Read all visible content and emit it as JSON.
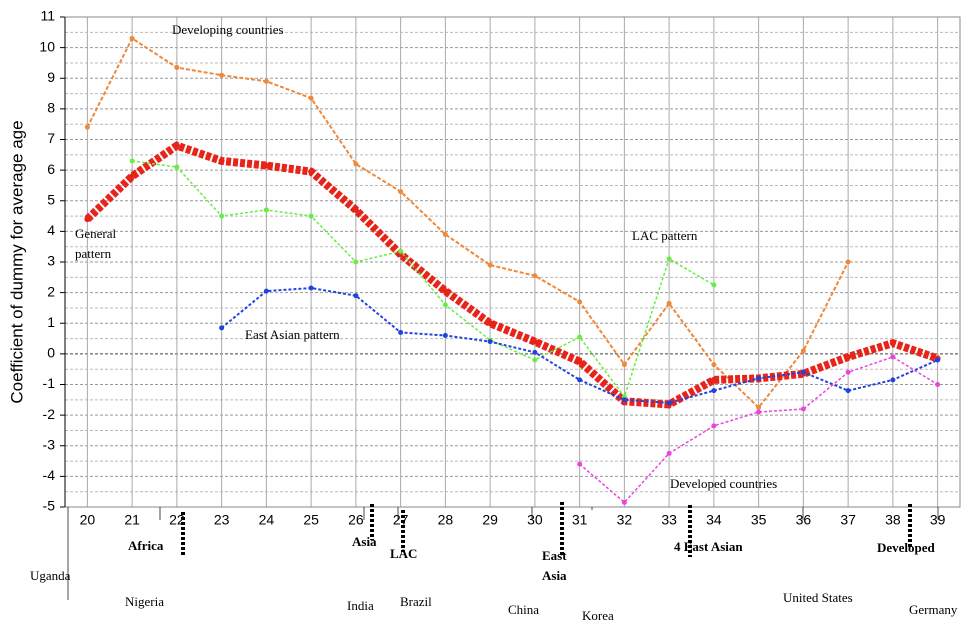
{
  "chart_data": {
    "type": "line",
    "y_label": "Coefficient of dummy for average age",
    "xlim": [
      19.5,
      39.5
    ],
    "xticks": [
      20,
      21,
      22,
      23,
      24,
      25,
      26,
      27,
      28,
      29,
      30,
      31,
      32,
      33,
      34,
      35,
      36,
      37,
      38,
      39
    ],
    "ylim": [
      -5,
      11
    ],
    "yticks": [
      -5,
      -4,
      -3,
      -2,
      -1,
      0,
      1,
      2,
      3,
      4,
      5,
      6,
      7,
      8,
      9,
      10,
      11
    ],
    "grid": true,
    "x": [
      20,
      21,
      22,
      23,
      24,
      25,
      26,
      27,
      28,
      29,
      30,
      31,
      32,
      33,
      34,
      35,
      36,
      37,
      38,
      39
    ],
    "series": [
      {
        "name": "Developing countries",
        "color": "#f0883a",
        "values": [
          7.4,
          10.3,
          9.35,
          9.1,
          8.9,
          8.35,
          6.2,
          5.3,
          3.9,
          2.9,
          2.55,
          1.7,
          -0.35,
          1.65,
          -0.35,
          -1.75,
          0.1,
          3.0,
          null,
          null
        ]
      },
      {
        "name": "General pattern",
        "color": "#e8231a",
        "values": [
          4.4,
          5.8,
          6.8,
          6.3,
          6.15,
          5.95,
          4.7,
          3.25,
          2.05,
          1.0,
          0.4,
          -0.25,
          -1.55,
          -1.65,
          -0.85,
          -0.8,
          -0.65,
          -0.1,
          0.35,
          -0.15
        ]
      },
      {
        "name": "LAC pattern",
        "color": "#66ee44",
        "values": [
          null,
          6.3,
          6.1,
          4.5,
          4.7,
          4.5,
          3.0,
          3.35,
          1.6,
          0.45,
          -0.2,
          0.55,
          -1.4,
          3.1,
          2.25,
          null,
          null,
          null,
          null,
          null
        ]
      },
      {
        "name": "East Asian pattern",
        "color": "#2244dd",
        "values": [
          null,
          null,
          null,
          0.85,
          2.05,
          2.15,
          1.9,
          0.7,
          0.6,
          0.4,
          0.05,
          -0.85,
          -1.5,
          -1.6,
          -1.2,
          -0.8,
          -0.6,
          -1.2,
          -0.85,
          -0.2
        ]
      },
      {
        "name": "Developed countries",
        "color": "#ee44dd",
        "values": [
          null,
          null,
          null,
          null,
          null,
          null,
          null,
          null,
          null,
          null,
          null,
          -3.6,
          -4.85,
          -3.25,
          -2.35,
          -1.9,
          -1.8,
          -0.6,
          -0.1,
          -1.0
        ]
      }
    ],
    "countries": [
      "Uganda",
      "Nigeria",
      "India",
      "Brazil",
      "China",
      "Korea",
      "United States",
      "Germany"
    ],
    "regions": [
      "Africa",
      "Asia",
      "LAC",
      "East Asia",
      "4 East Asian",
      "Developed"
    ]
  }
}
